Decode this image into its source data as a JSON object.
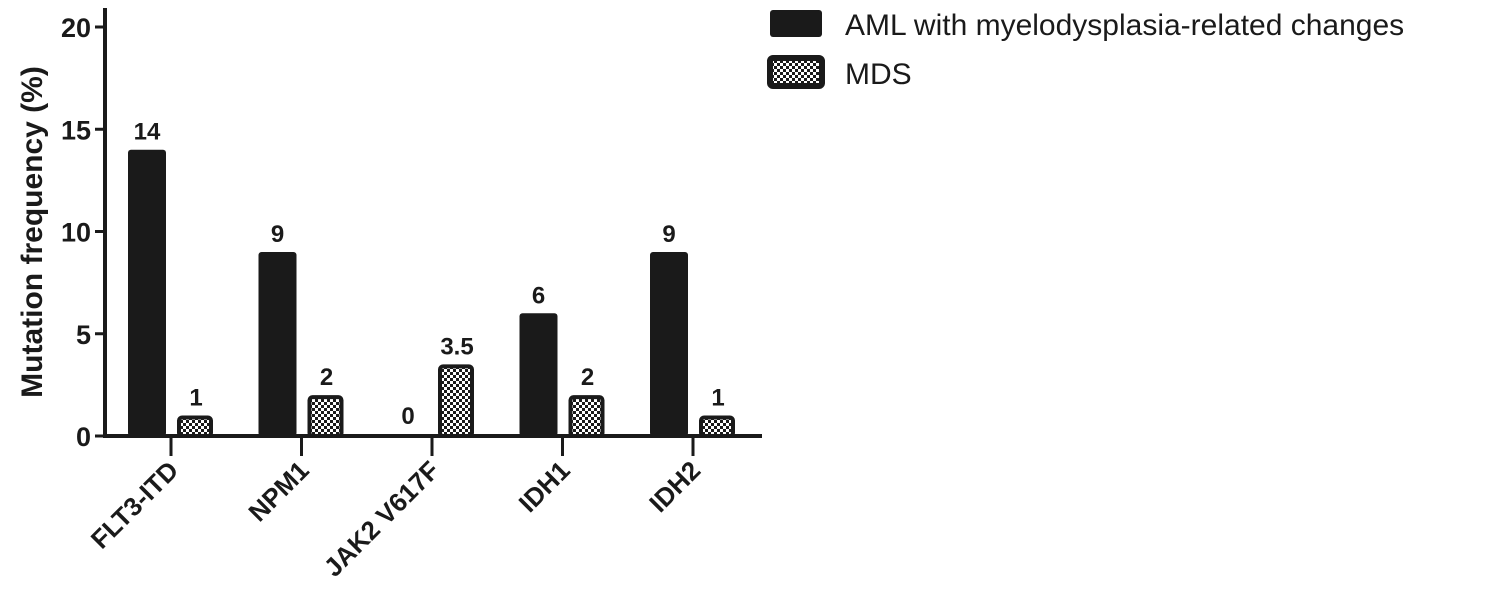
{
  "chart_data": {
    "type": "bar",
    "title": "",
    "xlabel": "",
    "ylabel": "Mutation frequency (%)",
    "ylim": [
      0,
      20
    ],
    "yticks": [
      0,
      5,
      10,
      15,
      20
    ],
    "grid": false,
    "legend_placement": "top-right",
    "categories": [
      "FLT3-ITD",
      "NPM1",
      "JAK2 V617F",
      "IDH1",
      "IDH2"
    ],
    "series": [
      {
        "name": "AML with myelodysplasia-related changes",
        "values": [
          14,
          9,
          0,
          6,
          9
        ],
        "labels": [
          "14",
          "9",
          "0",
          "6",
          "9"
        ],
        "fill": "solid",
        "color": "#1a1a1a"
      },
      {
        "name": "MDS",
        "values": [
          1,
          2,
          3.5,
          2,
          1
        ],
        "labels": [
          "1",
          "2",
          "3.5",
          "2",
          "1"
        ],
        "fill": "checkerboard",
        "color": "#1a1a1a"
      }
    ]
  }
}
